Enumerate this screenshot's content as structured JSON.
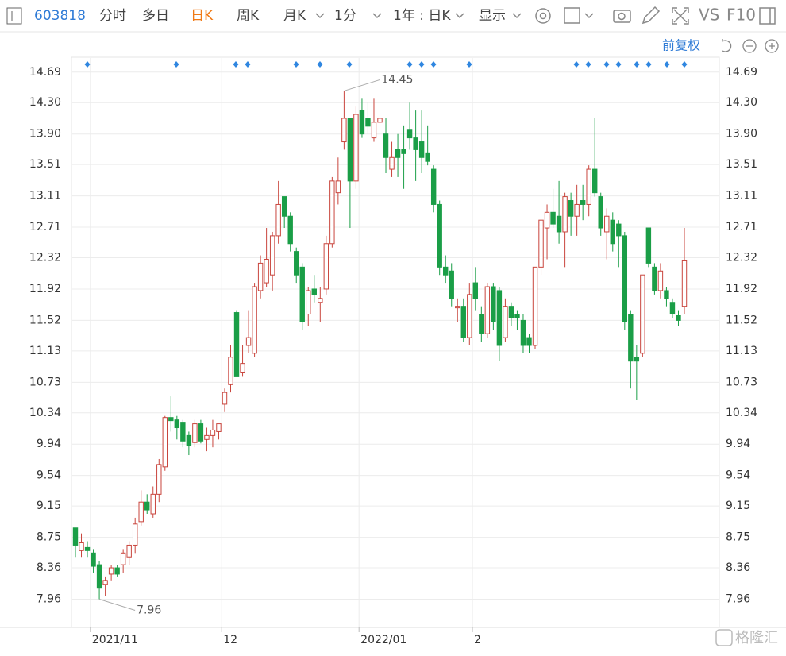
{
  "toolbar": {
    "code": "603818",
    "items": [
      "分时",
      "多日",
      "日K",
      "周K",
      "月K",
      "1分",
      "1年 : 日K",
      "显示"
    ],
    "vs": "VS",
    "f10": "F10",
    "adjust": "前复权"
  },
  "watermark": "格隆汇",
  "chart_data": {
    "type": "candlestick",
    "up_color": "#c9453d",
    "down_color": "#1a9e47",
    "categories": [
      null,
      null,
      null,
      "2021/11",
      null,
      null,
      null,
      null,
      null,
      null,
      null,
      null,
      null,
      null,
      null,
      null,
      null,
      null,
      null,
      null,
      null,
      null,
      null,
      null,
      null,
      "12",
      null,
      null,
      null,
      null,
      null,
      null,
      null,
      null,
      null,
      null,
      null,
      null,
      null,
      null,
      null,
      null,
      null,
      null,
      null,
      null,
      null,
      null,
      "2022/01",
      null,
      null,
      null,
      null,
      null,
      null,
      null,
      null,
      null,
      null,
      null,
      null,
      null,
      null,
      null,
      null,
      null,
      null,
      "2",
      null,
      null,
      null,
      null,
      null,
      null,
      null,
      null,
      null,
      null,
      null,
      null,
      null,
      null,
      null,
      null,
      null,
      null,
      null,
      null,
      null,
      null,
      null,
      null,
      null,
      null,
      null,
      null,
      null,
      null,
      null,
      null,
      null,
      null,
      null
    ],
    "open": [
      8.87,
      8.58,
      8.62,
      8.55,
      8.4,
      8.15,
      8.28,
      8.36,
      8.4,
      8.5,
      8.65,
      8.95,
      9.2,
      9.05,
      9.3,
      9.65,
      10.28,
      10.25,
      10.22,
      10.05,
      9.96,
      10.2,
      10.0,
      10.05,
      10.1,
      10.45,
      10.7,
      11.62,
      10.85,
      11.2,
      11.1,
      11.9,
      12.0,
      12.1,
      12.6,
      13.1,
      12.85,
      12.4,
      12.2,
      11.6,
      11.92,
      11.75,
      11.92,
      12.5,
      13.15,
      13.8,
      14.1,
      13.3,
      14.2,
      14.1,
      13.85,
      14.05,
      13.9,
      13.45,
      13.7,
      13.7,
      13.95,
      13.85,
      13.8,
      13.65,
      13.45,
      13.0,
      12.2,
      12.15,
      11.68,
      11.7,
      11.3,
      12.0,
      11.6,
      11.35,
      11.95,
      11.9,
      11.3,
      11.7,
      11.6,
      11.52,
      11.3,
      11.2,
      12.2,
      12.7,
      12.9,
      12.85,
      12.65,
      13.05,
      12.85,
      13.05,
      13.0,
      13.45,
      13.1,
      12.65,
      12.8,
      12.75,
      12.6,
      11.6,
      11.05,
      11.1,
      12.7,
      12.2,
      11.9,
      11.9,
      11.75,
      11.58,
      11.7
    ],
    "high": [
      8.87,
      8.8,
      8.7,
      8.6,
      8.45,
      8.25,
      8.4,
      8.4,
      8.6,
      8.7,
      9.0,
      9.35,
      9.3,
      9.4,
      9.75,
      10.3,
      10.55,
      10.3,
      10.25,
      10.1,
      10.25,
      10.25,
      10.15,
      10.25,
      10.2,
      10.65,
      11.2,
      11.65,
      11.2,
      11.65,
      12.0,
      12.35,
      12.7,
      12.65,
      13.3,
      13.1,
      12.9,
      12.45,
      12.25,
      11.95,
      12.1,
      11.95,
      12.6,
      13.35,
      13.6,
      14.45,
      14.1,
      14.25,
      14.35,
      14.3,
      14.35,
      14.15,
      14.1,
      13.8,
      13.9,
      14.0,
      14.3,
      14.2,
      14.2,
      14.0,
      13.5,
      13.05,
      12.35,
      12.25,
      11.8,
      11.8,
      12.0,
      12.2,
      11.7,
      12.0,
      12.0,
      11.95,
      11.8,
      11.75,
      11.65,
      11.6,
      11.35,
      12.2,
      12.8,
      13.0,
      13.2,
      13.3,
      13.15,
      13.15,
      13.25,
      13.25,
      13.5,
      14.1,
      13.15,
      12.95,
      12.9,
      12.8,
      12.65,
      11.65,
      11.2,
      12.1,
      12.7,
      12.25,
      12.25,
      11.95,
      11.8,
      11.65,
      12.7
    ],
    "low": [
      8.5,
      8.5,
      8.5,
      8.3,
      7.96,
      8.0,
      8.2,
      8.25,
      8.3,
      8.4,
      8.55,
      8.9,
      9.05,
      9.0,
      9.2,
      9.6,
      10.1,
      10.0,
      9.9,
      9.8,
      9.9,
      9.95,
      9.85,
      9.9,
      10.0,
      10.35,
      10.6,
      10.8,
      10.8,
      11.1,
      11.05,
      11.8,
      11.95,
      11.9,
      12.5,
      12.7,
      12.4,
      12.0,
      11.4,
      11.45,
      11.75,
      11.5,
      11.85,
      12.45,
      13.0,
      13.7,
      12.7,
      13.2,
      13.85,
      13.9,
      13.8,
      13.9,
      13.4,
      13.35,
      13.35,
      13.2,
      13.7,
      13.3,
      13.4,
      13.5,
      12.9,
      12.1,
      12.0,
      11.7,
      11.5,
      11.25,
      11.2,
      11.65,
      11.25,
      11.3,
      11.4,
      11.0,
      11.25,
      11.45,
      11.4,
      11.1,
      11.1,
      11.15,
      12.1,
      12.3,
      12.7,
      12.5,
      12.2,
      12.6,
      12.6,
      12.8,
      12.85,
      13.1,
      12.6,
      12.3,
      12.4,
      12.2,
      11.4,
      10.65,
      10.5,
      11.05,
      12.2,
      11.85,
      11.8,
      11.7,
      11.55,
      11.45,
      11.6
    ],
    "close": [
      8.65,
      8.68,
      8.58,
      8.38,
      8.1,
      8.2,
      8.36,
      8.28,
      8.55,
      8.65,
      8.92,
      9.2,
      9.1,
      9.3,
      9.68,
      10.28,
      10.24,
      10.15,
      9.98,
      9.92,
      10.2,
      9.98,
      10.05,
      10.12,
      10.2,
      10.6,
      11.05,
      10.8,
      10.97,
      11.3,
      11.95,
      12.25,
      12.3,
      12.6,
      13.0,
      12.85,
      12.5,
      12.1,
      11.5,
      11.9,
      11.85,
      11.8,
      12.5,
      13.3,
      13.3,
      14.1,
      13.3,
      14.15,
      13.9,
      14.0,
      14.05,
      14.1,
      13.6,
      13.6,
      13.6,
      13.65,
      13.85,
      13.7,
      13.6,
      13.55,
      13.0,
      12.2,
      12.1,
      11.8,
      11.7,
      11.3,
      11.85,
      11.8,
      11.35,
      11.95,
      11.5,
      11.2,
      11.7,
      11.55,
      11.55,
      11.2,
      11.2,
      12.2,
      12.8,
      12.9,
      12.75,
      12.65,
      13.1,
      12.85,
      13.0,
      13.0,
      13.45,
      13.15,
      12.7,
      12.85,
      12.5,
      12.6,
      11.5,
      11.0,
      11.0,
      12.1,
      12.25,
      11.9,
      12.15,
      11.8,
      11.6,
      11.52,
      12.28
    ],
    "annotations": [
      {
        "label": "14.45",
        "value": 14.45
      },
      {
        "label": "7.96",
        "value": 7.96
      }
    ],
    "ylim": [
      7.6,
      14.85
    ],
    "yticks": [
      14.69,
      {
        "value": 14.3,
        "label": "14.30"
      },
      {
        "value": 13.9,
        "label": "13.90"
      },
      13.51,
      13.11,
      12.71,
      12.32,
      11.92,
      11.52,
      11.13,
      10.73,
      10.34,
      9.94,
      9.54,
      9.15,
      8.75,
      8.36,
      7.96
    ],
    "grid": true
  }
}
